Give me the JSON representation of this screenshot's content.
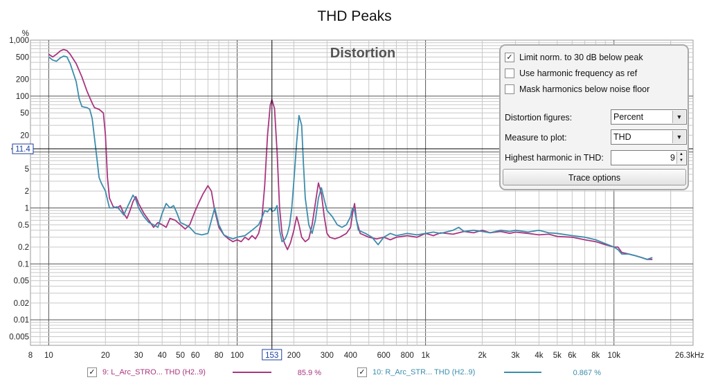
{
  "chart_data": {
    "type": "line",
    "title": "THD Peaks",
    "overlay_title": "Distortion",
    "yunit": "%",
    "xunit_label": "26.3kHz",
    "xscale": "log",
    "yscale": "log",
    "xlim": [
      8,
      26300
    ],
    "ylim": [
      0.0035,
      1000
    ],
    "x_ticks": [
      {
        "v": 8,
        "label": "8"
      },
      {
        "v": 10,
        "label": "10"
      },
      {
        "v": 20,
        "label": "20"
      },
      {
        "v": 30,
        "label": "30"
      },
      {
        "v": 40,
        "label": "40"
      },
      {
        "v": 50,
        "label": "50"
      },
      {
        "v": 60,
        "label": "60"
      },
      {
        "v": 80,
        "label": "80"
      },
      {
        "v": 100,
        "label": "100"
      },
      {
        "v": 200,
        "label": "200"
      },
      {
        "v": 300,
        "label": "300"
      },
      {
        "v": 400,
        "label": "400"
      },
      {
        "v": 600,
        "label": "600"
      },
      {
        "v": 800,
        "label": "800"
      },
      {
        "v": 1000,
        "label": "1k"
      },
      {
        "v": 2000,
        "label": "2k"
      },
      {
        "v": 3000,
        "label": "3k"
      },
      {
        "v": 4000,
        "label": "4k"
      },
      {
        "v": 5000,
        "label": "5k"
      },
      {
        "v": 6000,
        "label": "6k"
      },
      {
        "v": 8000,
        "label": "8k"
      },
      {
        "v": 10000,
        "label": "10k"
      }
    ],
    "y_ticks": [
      {
        "v": 1000,
        "label": "1,000"
      },
      {
        "v": 500,
        "label": "500"
      },
      {
        "v": 200,
        "label": "200"
      },
      {
        "v": 100,
        "label": "100"
      },
      {
        "v": 50,
        "label": "50"
      },
      {
        "v": 20,
        "label": "20"
      },
      {
        "v": 5,
        "label": "5"
      },
      {
        "v": 2,
        "label": "2"
      },
      {
        "v": 1,
        "label": "1"
      },
      {
        "v": 0.5,
        "label": "0.5"
      },
      {
        "v": 0.2,
        "label": "0.2"
      },
      {
        "v": 0.1,
        "label": "0.1"
      },
      {
        "v": 0.05,
        "label": "0.05"
      },
      {
        "v": 0.02,
        "label": "0.02"
      },
      {
        "v": 0.01,
        "label": "0.01"
      },
      {
        "v": 0.005,
        "label": "0.005"
      }
    ],
    "major_x": [
      10,
      100,
      1000,
      10000
    ],
    "major_y": [
      1000,
      100,
      10,
      1,
      0.1,
      0.01
    ],
    "cursor": {
      "x": 153,
      "y": 11.4,
      "x_label": "153",
      "y_label": "11.4"
    },
    "series": [
      {
        "name": "9: L_Arc_STRO... THD (H2..9)",
        "value_label": "85.9 %",
        "color": "#a8347f",
        "points": [
          [
            10,
            560
          ],
          [
            10.5,
            500
          ],
          [
            11,
            560
          ],
          [
            11.5,
            640
          ],
          [
            12,
            680
          ],
          [
            12.5,
            650
          ],
          [
            13,
            560
          ],
          [
            14,
            380
          ],
          [
            15,
            220
          ],
          [
            16,
            120
          ],
          [
            17,
            75
          ],
          [
            17.5,
            62
          ],
          [
            18.5,
            58
          ],
          [
            19.5,
            50
          ],
          [
            20,
            20
          ],
          [
            20.5,
            3.5
          ],
          [
            21,
            1.5
          ],
          [
            22,
            1.05
          ],
          [
            23,
            1.0
          ],
          [
            24,
            1.1
          ],
          [
            25,
            0.8
          ],
          [
            26,
            0.65
          ],
          [
            27,
            0.9
          ],
          [
            28,
            1.3
          ],
          [
            29,
            1.6
          ],
          [
            30,
            1.2
          ],
          [
            32,
            0.8
          ],
          [
            34,
            0.6
          ],
          [
            36,
            0.45
          ],
          [
            38,
            0.55
          ],
          [
            40,
            0.5
          ],
          [
            42,
            0.45
          ],
          [
            44,
            0.65
          ],
          [
            47,
            0.6
          ],
          [
            50,
            0.5
          ],
          [
            53,
            0.42
          ],
          [
            56,
            0.5
          ],
          [
            60,
            0.9
          ],
          [
            63,
            1.3
          ],
          [
            66,
            1.8
          ],
          [
            70,
            2.5
          ],
          [
            73,
            2.0
          ],
          [
            76,
            0.9
          ],
          [
            80,
            0.45
          ],
          [
            85,
            0.33
          ],
          [
            90,
            0.28
          ],
          [
            95,
            0.25
          ],
          [
            100,
            0.27
          ],
          [
            105,
            0.25
          ],
          [
            110,
            0.3
          ],
          [
            115,
            0.27
          ],
          [
            120,
            0.32
          ],
          [
            125,
            0.28
          ],
          [
            130,
            0.35
          ],
          [
            135,
            0.6
          ],
          [
            140,
            2.5
          ],
          [
            145,
            20
          ],
          [
            150,
            70
          ],
          [
            153,
            86
          ],
          [
            158,
            60
          ],
          [
            163,
            10
          ],
          [
            168,
            1.0
          ],
          [
            173,
            0.35
          ],
          [
            178,
            0.24
          ],
          [
            185,
            0.18
          ],
          [
            192,
            0.24
          ],
          [
            200,
            0.4
          ],
          [
            207,
            0.7
          ],
          [
            213,
            0.5
          ],
          [
            220,
            0.3
          ],
          [
            230,
            0.25
          ],
          [
            240,
            0.28
          ],
          [
            250,
            0.5
          ],
          [
            260,
            1.2
          ],
          [
            270,
            2.8
          ],
          [
            280,
            1.8
          ],
          [
            290,
            0.7
          ],
          [
            300,
            0.35
          ],
          [
            310,
            0.3
          ],
          [
            330,
            0.28
          ],
          [
            350,
            0.3
          ],
          [
            380,
            0.35
          ],
          [
            400,
            0.45
          ],
          [
            410,
            0.8
          ],
          [
            420,
            1.2
          ],
          [
            430,
            0.6
          ],
          [
            450,
            0.35
          ],
          [
            500,
            0.3
          ],
          [
            550,
            0.28
          ],
          [
            600,
            0.3
          ],
          [
            650,
            0.27
          ],
          [
            700,
            0.3
          ],
          [
            800,
            0.32
          ],
          [
            900,
            0.3
          ],
          [
            1000,
            0.35
          ],
          [
            1100,
            0.32
          ],
          [
            1200,
            0.36
          ],
          [
            1400,
            0.34
          ],
          [
            1600,
            0.38
          ],
          [
            1800,
            0.36
          ],
          [
            2000,
            0.4
          ],
          [
            2200,
            0.36
          ],
          [
            2500,
            0.38
          ],
          [
            2800,
            0.35
          ],
          [
            3000,
            0.37
          ],
          [
            3500,
            0.35
          ],
          [
            4000,
            0.33
          ],
          [
            4500,
            0.34
          ],
          [
            5000,
            0.31
          ],
          [
            6000,
            0.3
          ],
          [
            7000,
            0.27
          ],
          [
            8000,
            0.25
          ],
          [
            9000,
            0.22
          ],
          [
            10000,
            0.2
          ],
          [
            10500,
            0.2
          ],
          [
            11000,
            0.16
          ],
          [
            12000,
            0.15
          ],
          [
            13000,
            0.14
          ],
          [
            14000,
            0.13
          ],
          [
            15000,
            0.12
          ],
          [
            16000,
            0.12
          ]
        ]
      },
      {
        "name": "10: R_Arc_STR... THD (H2..9)",
        "value_label": "0.867 %",
        "color": "#3b8cab",
        "points": [
          [
            10,
            500
          ],
          [
            10.5,
            440
          ],
          [
            11,
            420
          ],
          [
            11.5,
            480
          ],
          [
            12,
            520
          ],
          [
            12.5,
            500
          ],
          [
            13,
            380
          ],
          [
            14,
            180
          ],
          [
            14.5,
            90
          ],
          [
            15,
            65
          ],
          [
            16,
            62
          ],
          [
            16.5,
            58
          ],
          [
            17,
            40
          ],
          [
            18,
            8
          ],
          [
            18.5,
            3.5
          ],
          [
            19,
            2.8
          ],
          [
            20,
            2.0
          ],
          [
            21,
            1.0
          ],
          [
            22,
            1.0
          ],
          [
            23,
            1.05
          ],
          [
            24,
            0.9
          ],
          [
            25,
            0.75
          ],
          [
            26,
            1.0
          ],
          [
            27,
            1.3
          ],
          [
            28,
            1.7
          ],
          [
            29,
            1.4
          ],
          [
            30,
            1.0
          ],
          [
            32,
            0.7
          ],
          [
            34,
            0.55
          ],
          [
            36,
            0.5
          ],
          [
            38,
            0.45
          ],
          [
            40,
            0.8
          ],
          [
            42,
            1.2
          ],
          [
            44,
            1.0
          ],
          [
            46,
            1.1
          ],
          [
            48,
            0.8
          ],
          [
            50,
            0.55
          ],
          [
            53,
            0.5
          ],
          [
            56,
            0.45
          ],
          [
            60,
            0.35
          ],
          [
            65,
            0.33
          ],
          [
            70,
            0.35
          ],
          [
            73,
            0.6
          ],
          [
            76,
            1.0
          ],
          [
            80,
            0.5
          ],
          [
            85,
            0.33
          ],
          [
            90,
            0.3
          ],
          [
            95,
            0.28
          ],
          [
            100,
            0.3
          ],
          [
            110,
            0.32
          ],
          [
            120,
            0.4
          ],
          [
            130,
            0.5
          ],
          [
            135,
            0.65
          ],
          [
            140,
            0.9
          ],
          [
            145,
            0.85
          ],
          [
            150,
            1.0
          ],
          [
            153,
            0.87
          ],
          [
            158,
            0.9
          ],
          [
            163,
            1.1
          ],
          [
            168,
            0.4
          ],
          [
            173,
            0.25
          ],
          [
            180,
            0.28
          ],
          [
            185,
            0.35
          ],
          [
            190,
            0.5
          ],
          [
            195,
            1.0
          ],
          [
            200,
            3
          ],
          [
            207,
            15
          ],
          [
            213,
            45
          ],
          [
            220,
            30
          ],
          [
            225,
            6
          ],
          [
            230,
            1.5
          ],
          [
            240,
            0.5
          ],
          [
            250,
            0.35
          ],
          [
            260,
            0.6
          ],
          [
            270,
            1.5
          ],
          [
            280,
            2.3
          ],
          [
            290,
            1.4
          ],
          [
            300,
            0.9
          ],
          [
            320,
            0.7
          ],
          [
            340,
            0.5
          ],
          [
            360,
            0.45
          ],
          [
            380,
            0.5
          ],
          [
            400,
            0.7
          ],
          [
            410,
            1.0
          ],
          [
            420,
            0.9
          ],
          [
            440,
            0.4
          ],
          [
            480,
            0.35
          ],
          [
            520,
            0.3
          ],
          [
            560,
            0.22
          ],
          [
            600,
            0.3
          ],
          [
            650,
            0.35
          ],
          [
            700,
            0.32
          ],
          [
            800,
            0.35
          ],
          [
            900,
            0.33
          ],
          [
            1000,
            0.35
          ],
          [
            1100,
            0.37
          ],
          [
            1200,
            0.35
          ],
          [
            1400,
            0.4
          ],
          [
            1500,
            0.45
          ],
          [
            1600,
            0.38
          ],
          [
            1800,
            0.4
          ],
          [
            2000,
            0.38
          ],
          [
            2200,
            0.36
          ],
          [
            2500,
            0.4
          ],
          [
            2800,
            0.38
          ],
          [
            3000,
            0.4
          ],
          [
            3500,
            0.37
          ],
          [
            4000,
            0.4
          ],
          [
            4500,
            0.36
          ],
          [
            5000,
            0.35
          ],
          [
            6000,
            0.32
          ],
          [
            7000,
            0.3
          ],
          [
            8000,
            0.27
          ],
          [
            9000,
            0.23
          ],
          [
            10000,
            0.2
          ],
          [
            10500,
            0.18
          ],
          [
            11000,
            0.15
          ],
          [
            12000,
            0.15
          ],
          [
            13000,
            0.14
          ],
          [
            14000,
            0.13
          ],
          [
            15000,
            0.12
          ],
          [
            16000,
            0.13
          ]
        ]
      }
    ]
  },
  "panel": {
    "checkboxes": [
      {
        "label": "Limit norm. to 30 dB below peak",
        "checked": true,
        "mark": "✓"
      },
      {
        "label": "Use harmonic frequency as ref",
        "checked": false,
        "mark": ""
      },
      {
        "label": "Mask harmonics below noise floor",
        "checked": false,
        "mark": ""
      }
    ],
    "distortion_figures_label": "Distortion figures:",
    "distortion_figures_value": "Percent",
    "measure_label": "Measure to plot:",
    "measure_value": "THD",
    "harmonic_label": "Highest harmonic in THD:",
    "harmonic_value": "9",
    "trace_options_label": "Trace options"
  },
  "legend": [
    {
      "mark": "✓"
    },
    {
      "mark": "✓"
    }
  ]
}
